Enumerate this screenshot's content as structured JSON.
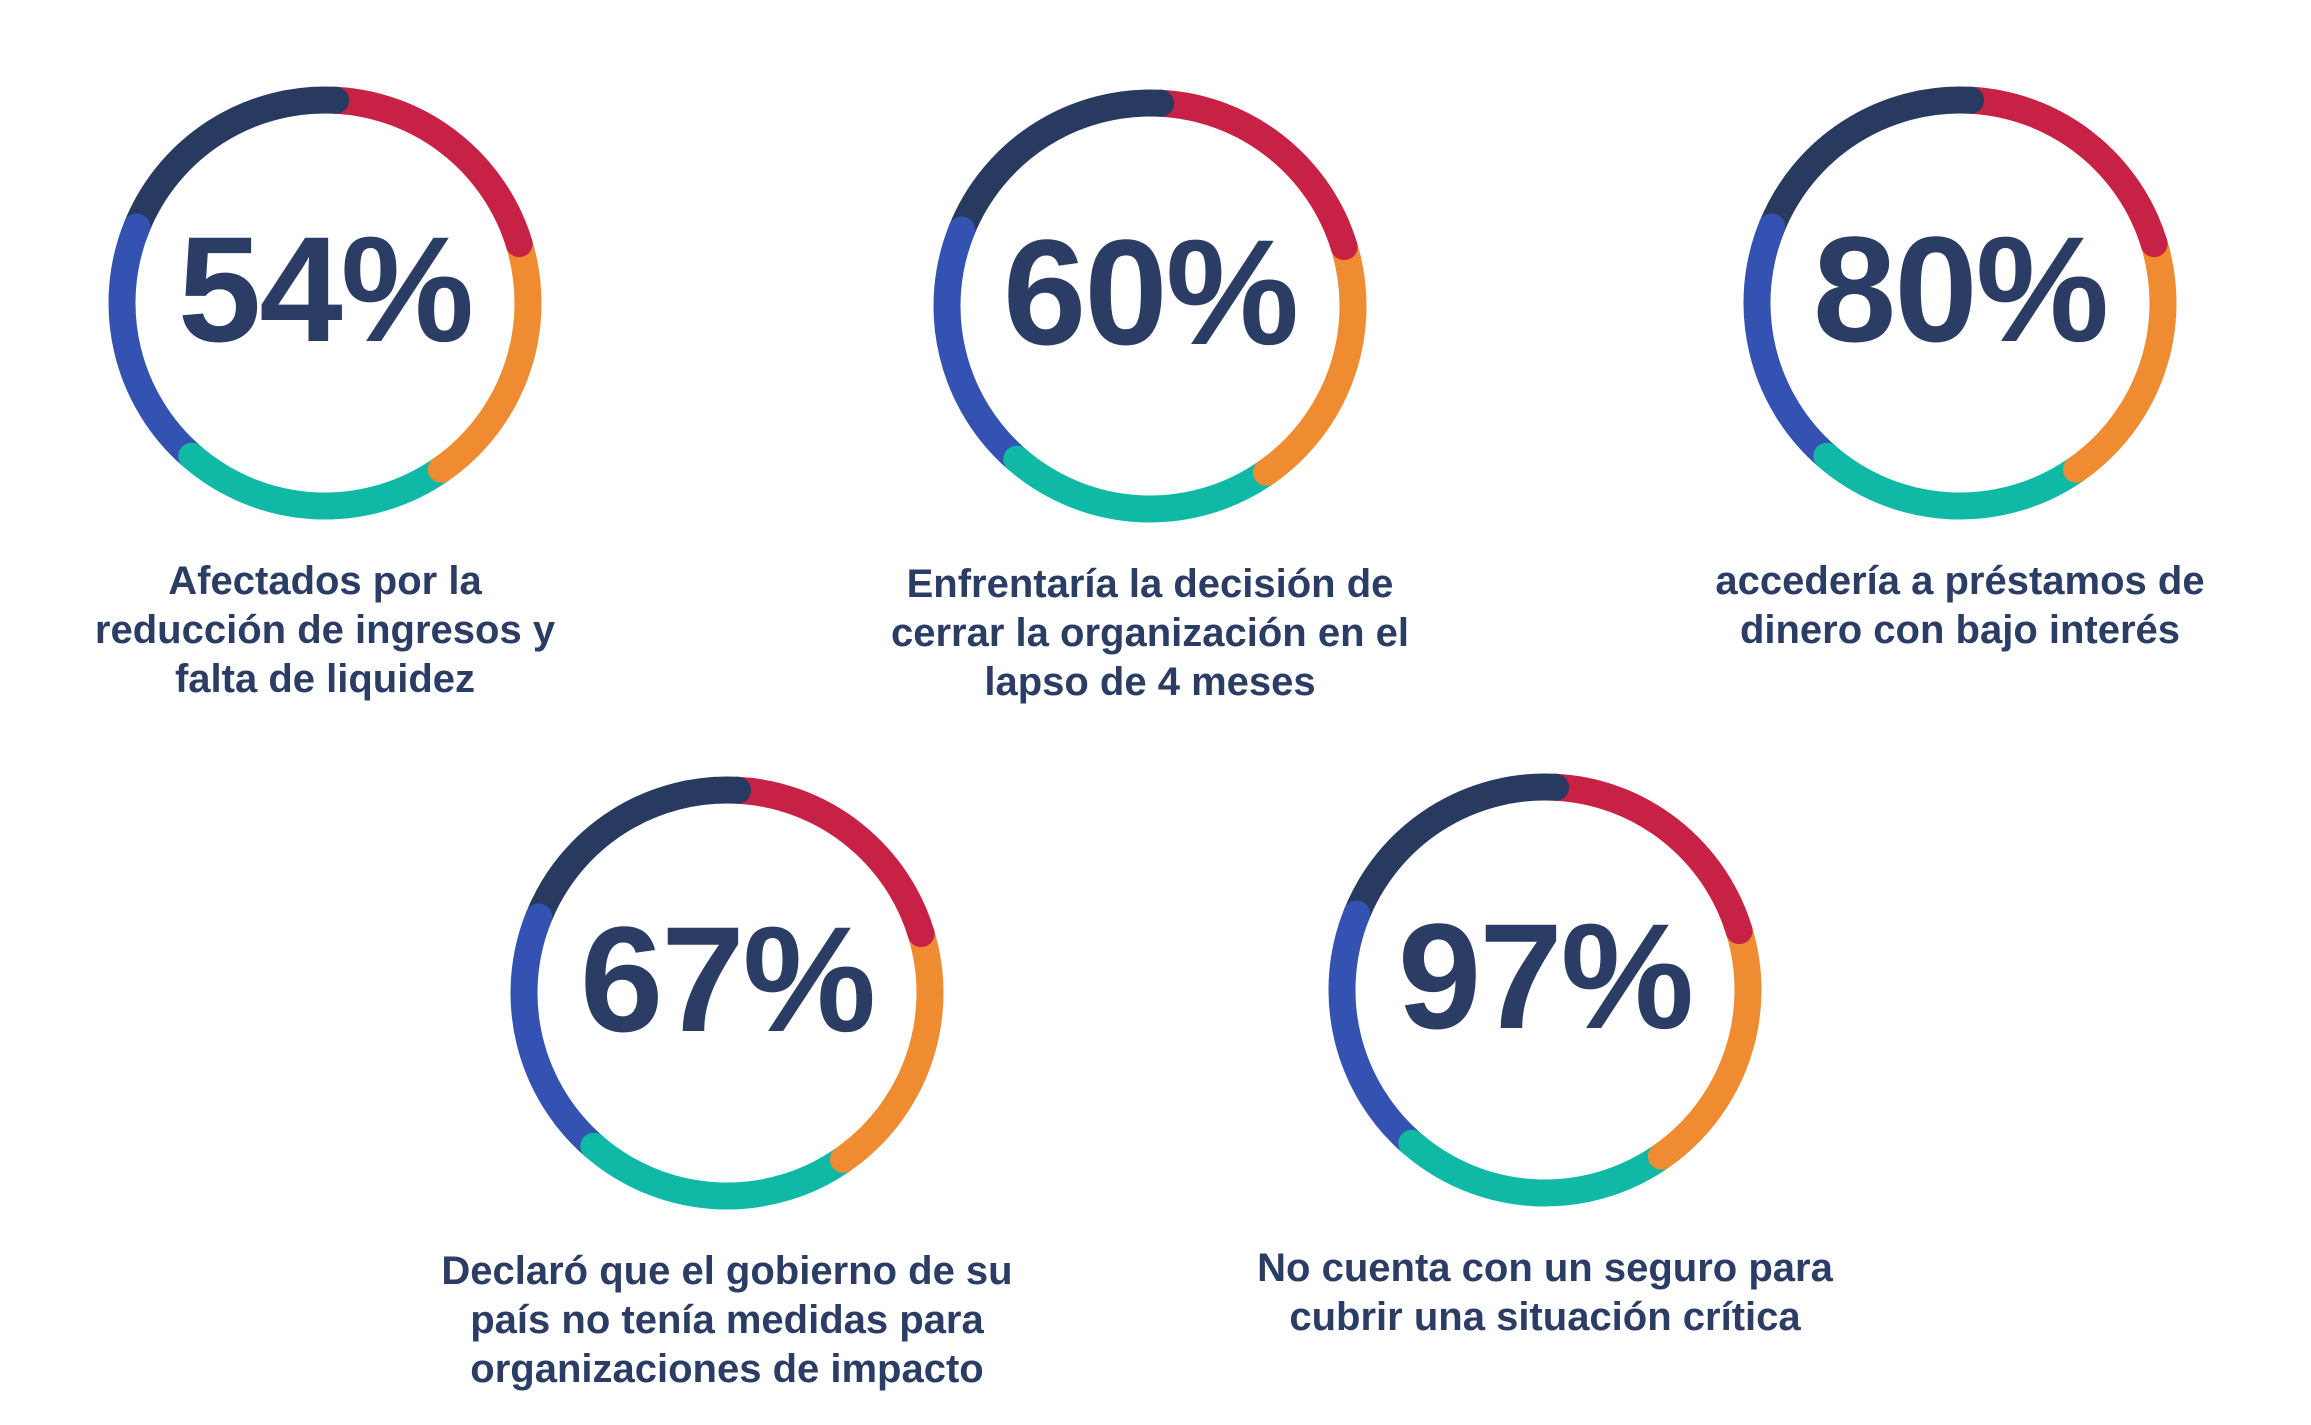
{
  "colors": {
    "background": "#FFFFFF",
    "text_navy": "#2B3D65"
  },
  "ring": {
    "stroke_width": 27,
    "segments": [
      {
        "name": "crimson",
        "color": "#C72245",
        "start_deg": 3,
        "sweep_deg": 70
      },
      {
        "name": "orange",
        "color": "#EF8C31",
        "start_deg": 73,
        "sweep_deg": 72
      },
      {
        "name": "teal",
        "color": "#10B9A6",
        "start_deg": 145,
        "sweep_deg": 76
      },
      {
        "name": "royal-blue",
        "color": "#3452B1",
        "start_deg": 221,
        "sweep_deg": 71
      },
      {
        "name": "navy",
        "color": "#283A60",
        "start_deg": 292,
        "sweep_deg": 71
      }
    ]
  },
  "chart_data": {
    "type": "donut",
    "subtype": "percentage-stat-rings",
    "legend": "none",
    "stats": [
      {
        "value": 54,
        "value_label": "54%",
        "caption": "Afectados por la\nreducción de ingresos y\nfalta de liquidez"
      },
      {
        "value": 60,
        "value_label": "60%",
        "caption": "Enfrentaría la decisión de\ncerrar la organización en el\nlapso de 4 meses"
      },
      {
        "value": 80,
        "value_label": "80%",
        "caption": "accedería a préstamos de\ndinero con bajo interés"
      },
      {
        "value": 67,
        "value_label": "67%",
        "caption": "Declaró que el gobierno de su\npaís no tenía medidas para\norganizaciones de impacto"
      },
      {
        "value": 97,
        "value_label": "97%",
        "caption": "No cuenta con un seguro para\ncubrir una situación crítica"
      }
    ]
  }
}
